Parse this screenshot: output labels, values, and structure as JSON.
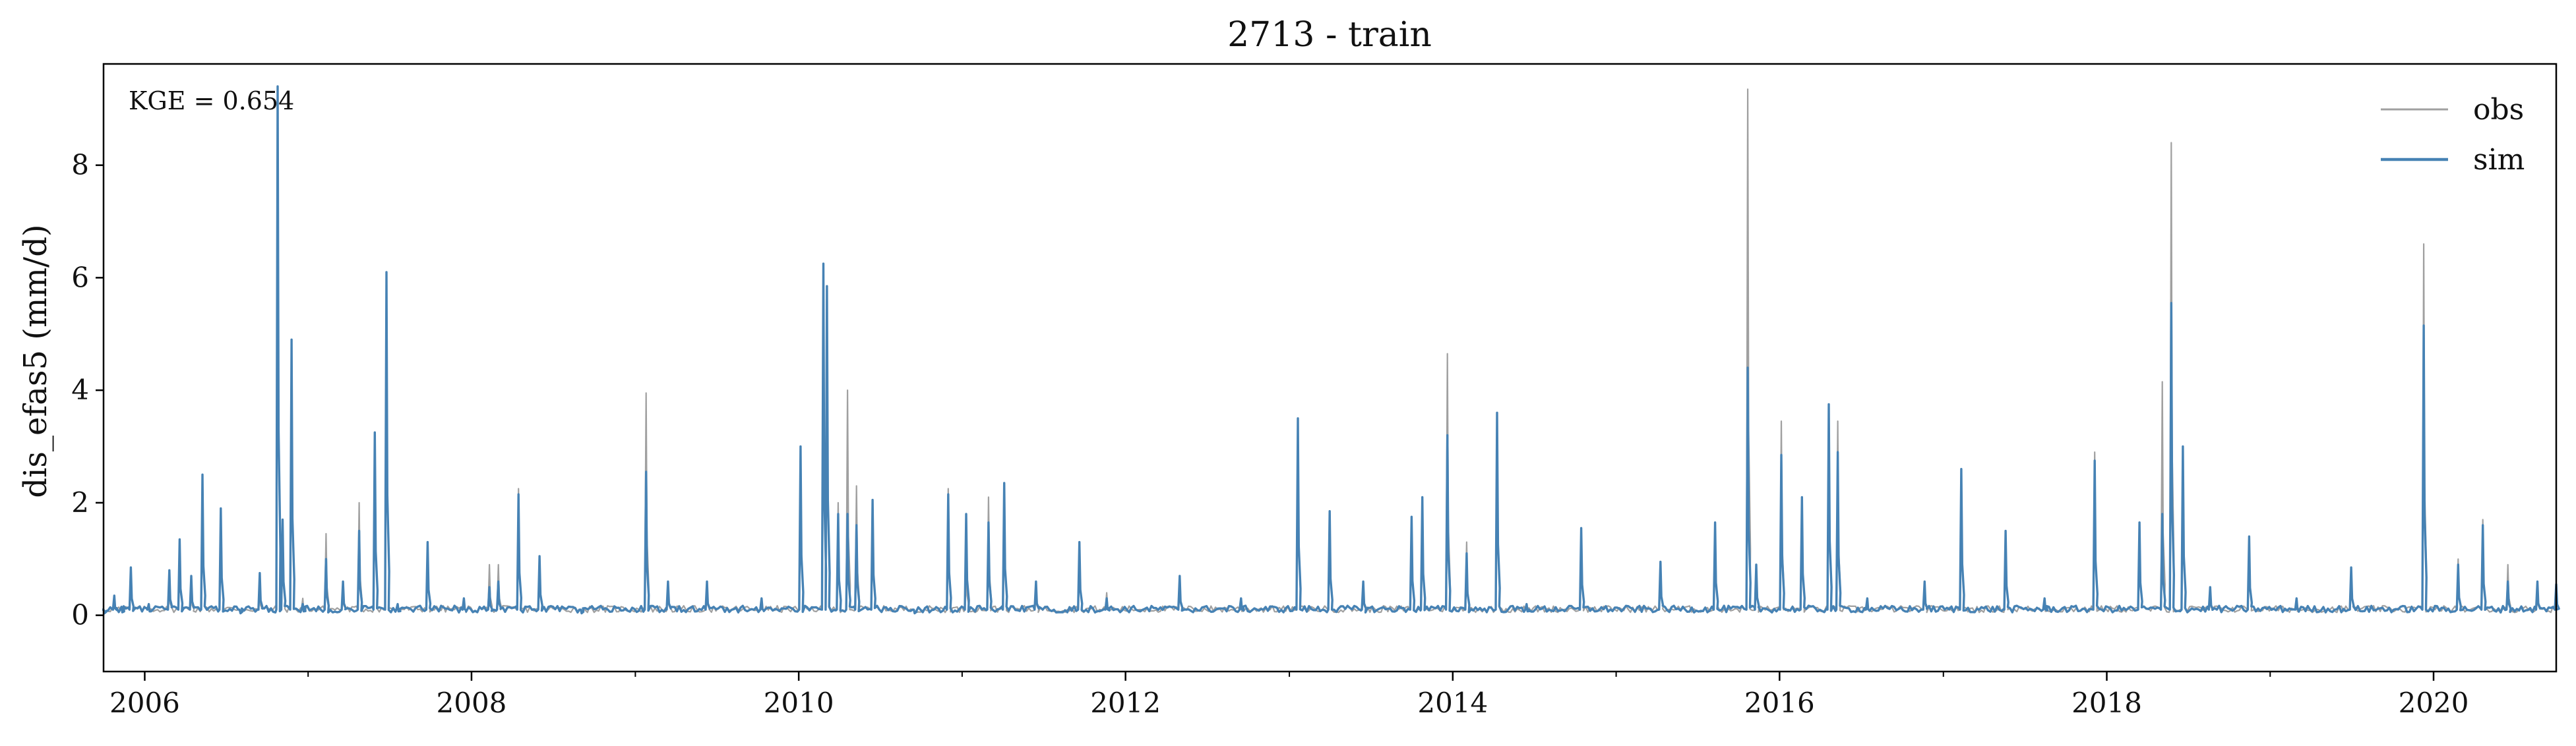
{
  "chart_data": {
    "type": "line",
    "title": "2713 - train",
    "ylabel": "dis_efas5 (mm/d)",
    "xlabel": "",
    "annotation": "KGE = 0.654",
    "xlim": [
      "2005-10-01",
      "2020-10-01"
    ],
    "ylim": [
      -1.0,
      9.8
    ],
    "x_ticks": [
      "2006",
      "2008",
      "2010",
      "2012",
      "2014",
      "2016",
      "2018",
      "2020"
    ],
    "y_ticks": [
      0,
      2,
      4,
      6,
      8
    ],
    "grid": false,
    "legend_position": "top-right",
    "series": [
      {
        "name": "obs",
        "color": "#a0a0a0",
        "points": [
          [
            "2005-10-01",
            0.1
          ],
          [
            "2005-10-25",
            0.35
          ],
          [
            "2005-11-10",
            0.15
          ],
          [
            "2005-12-01",
            0.8
          ],
          [
            "2006-01-10",
            0.2
          ],
          [
            "2006-02-25",
            0.6
          ],
          [
            "2006-03-20",
            1.2
          ],
          [
            "2006-04-15",
            0.5
          ],
          [
            "2006-05-10",
            2.4
          ],
          [
            "2006-06-20",
            1.8
          ],
          [
            "2006-08-01",
            0.1
          ],
          [
            "2006-09-15",
            0.5
          ],
          [
            "2006-10-25",
            9.3
          ],
          [
            "2006-11-05",
            1.5
          ],
          [
            "2006-11-25",
            4.8
          ],
          [
            "2006-12-20",
            0.3
          ],
          [
            "2007-02-10",
            1.45
          ],
          [
            "2007-03-20",
            0.5
          ],
          [
            "2007-04-25",
            2.0
          ],
          [
            "2007-05-30",
            3.2
          ],
          [
            "2007-06-25",
            6.0
          ],
          [
            "2007-07-20",
            0.2
          ],
          [
            "2007-09-25",
            1.3
          ],
          [
            "2007-12-15",
            0.3
          ],
          [
            "2008-02-10",
            0.9
          ],
          [
            "2008-03-01",
            0.9
          ],
          [
            "2008-04-15",
            2.25
          ],
          [
            "2008-06-01",
            1.0
          ],
          [
            "2008-09-01",
            0.1
          ],
          [
            "2009-01-25",
            3.95
          ],
          [
            "2009-03-15",
            0.5
          ],
          [
            "2009-06-10",
            0.5
          ],
          [
            "2009-10-10",
            0.3
          ],
          [
            "2010-01-05",
            3.0
          ],
          [
            "2010-02-25",
            6.2
          ],
          [
            "2010-03-05",
            5.7
          ],
          [
            "2010-03-30",
            2.0
          ],
          [
            "2010-04-20",
            4.0
          ],
          [
            "2010-05-10",
            2.3
          ],
          [
            "2010-06-15",
            2.0
          ],
          [
            "2010-09-15",
            0.1
          ],
          [
            "2010-12-01",
            2.25
          ],
          [
            "2011-01-10",
            1.0
          ],
          [
            "2011-03-01",
            2.1
          ],
          [
            "2011-04-05",
            2.3
          ],
          [
            "2011-06-15",
            0.5
          ],
          [
            "2011-09-20",
            1.25
          ],
          [
            "2011-11-20",
            0.4
          ],
          [
            "2012-05-01",
            0.6
          ],
          [
            "2012-09-15",
            0.2
          ],
          [
            "2013-01-20",
            3.45
          ],
          [
            "2013-04-01",
            1.85
          ],
          [
            "2013-06-15",
            0.5
          ],
          [
            "2013-10-01",
            1.7
          ],
          [
            "2013-10-25",
            2.0
          ],
          [
            "2013-12-20",
            4.65
          ],
          [
            "2014-02-01",
            1.3
          ],
          [
            "2014-04-10",
            3.6
          ],
          [
            "2014-06-15",
            0.2
          ],
          [
            "2014-10-15",
            1.5
          ],
          [
            "2015-04-10",
            0.9
          ],
          [
            "2015-08-10",
            1.6
          ],
          [
            "2015-10-22",
            9.35
          ],
          [
            "2015-11-10",
            0.8
          ],
          [
            "2016-01-05",
            3.45
          ],
          [
            "2016-02-20",
            2.1
          ],
          [
            "2016-04-20",
            3.7
          ],
          [
            "2016-05-10",
            3.45
          ],
          [
            "2016-07-15",
            0.3
          ],
          [
            "2016-11-20",
            0.5
          ],
          [
            "2017-02-10",
            2.5
          ],
          [
            "2017-05-20",
            1.4
          ],
          [
            "2017-08-15",
            0.2
          ],
          [
            "2017-12-05",
            2.9
          ],
          [
            "2018-03-15",
            1.6
          ],
          [
            "2018-05-05",
            4.15
          ],
          [
            "2018-05-25",
            8.4
          ],
          [
            "2018-06-20",
            2.9
          ],
          [
            "2018-08-20",
            0.4
          ],
          [
            "2018-11-15",
            1.3
          ],
          [
            "2019-03-01",
            0.2
          ],
          [
            "2019-07-01",
            0.8
          ],
          [
            "2019-12-10",
            6.6
          ],
          [
            "2020-02-25",
            1.0
          ],
          [
            "2020-04-20",
            1.7
          ],
          [
            "2020-06-15",
            0.9
          ],
          [
            "2020-08-20",
            0.5
          ],
          [
            "2020-10-01",
            0.5
          ]
        ]
      },
      {
        "name": "sim",
        "color": "#4682b4",
        "points": [
          [
            "2005-10-01",
            0.1
          ],
          [
            "2005-10-25",
            0.35
          ],
          [
            "2005-11-10",
            0.15
          ],
          [
            "2005-12-01",
            0.85
          ],
          [
            "2006-01-10",
            0.2
          ],
          [
            "2006-02-25",
            0.8
          ],
          [
            "2006-03-20",
            1.35
          ],
          [
            "2006-04-15",
            0.7
          ],
          [
            "2006-05-10",
            2.5
          ],
          [
            "2006-06-20",
            1.9
          ],
          [
            "2006-08-01",
            0.1
          ],
          [
            "2006-09-15",
            0.75
          ],
          [
            "2006-10-25",
            9.4
          ],
          [
            "2006-11-05",
            1.7
          ],
          [
            "2006-11-25",
            4.9
          ],
          [
            "2006-12-20",
            0.2
          ],
          [
            "2007-02-10",
            1.0
          ],
          [
            "2007-03-20",
            0.6
          ],
          [
            "2007-04-25",
            1.5
          ],
          [
            "2007-05-30",
            3.25
          ],
          [
            "2007-06-25",
            6.1
          ],
          [
            "2007-07-20",
            0.2
          ],
          [
            "2007-09-25",
            1.3
          ],
          [
            "2007-12-15",
            0.3
          ],
          [
            "2008-02-10",
            0.5
          ],
          [
            "2008-03-01",
            0.6
          ],
          [
            "2008-04-15",
            2.15
          ],
          [
            "2008-06-01",
            1.05
          ],
          [
            "2008-09-01",
            0.1
          ],
          [
            "2009-01-25",
            2.55
          ],
          [
            "2009-03-15",
            0.6
          ],
          [
            "2009-06-10",
            0.6
          ],
          [
            "2009-10-10",
            0.3
          ],
          [
            "2010-01-05",
            3.0
          ],
          [
            "2010-02-25",
            6.25
          ],
          [
            "2010-03-05",
            5.85
          ],
          [
            "2010-03-30",
            1.8
          ],
          [
            "2010-04-20",
            1.8
          ],
          [
            "2010-05-10",
            1.6
          ],
          [
            "2010-06-15",
            2.05
          ],
          [
            "2010-09-15",
            0.1
          ],
          [
            "2010-12-01",
            2.15
          ],
          [
            "2011-01-10",
            1.8
          ],
          [
            "2011-03-01",
            1.65
          ],
          [
            "2011-04-05",
            2.35
          ],
          [
            "2011-06-15",
            0.6
          ],
          [
            "2011-09-20",
            1.3
          ],
          [
            "2011-11-20",
            0.3
          ],
          [
            "2012-05-01",
            0.7
          ],
          [
            "2012-09-15",
            0.3
          ],
          [
            "2013-01-20",
            3.5
          ],
          [
            "2013-04-01",
            1.85
          ],
          [
            "2013-06-15",
            0.6
          ],
          [
            "2013-10-01",
            1.75
          ],
          [
            "2013-10-25",
            2.1
          ],
          [
            "2013-12-20",
            3.2
          ],
          [
            "2014-02-01",
            1.1
          ],
          [
            "2014-04-10",
            3.6
          ],
          [
            "2014-06-15",
            0.2
          ],
          [
            "2014-10-15",
            1.55
          ],
          [
            "2015-04-10",
            0.95
          ],
          [
            "2015-08-10",
            1.65
          ],
          [
            "2015-10-22",
            4.4
          ],
          [
            "2015-11-10",
            0.9
          ],
          [
            "2016-01-05",
            2.85
          ],
          [
            "2016-02-20",
            2.1
          ],
          [
            "2016-04-20",
            3.75
          ],
          [
            "2016-05-10",
            2.9
          ],
          [
            "2016-07-15",
            0.3
          ],
          [
            "2016-11-20",
            0.6
          ],
          [
            "2017-02-10",
            2.6
          ],
          [
            "2017-05-20",
            1.5
          ],
          [
            "2017-08-15",
            0.3
          ],
          [
            "2017-12-05",
            2.75
          ],
          [
            "2018-03-15",
            1.65
          ],
          [
            "2018-05-05",
            1.8
          ],
          [
            "2018-05-25",
            5.55
          ],
          [
            "2018-06-20",
            3.0
          ],
          [
            "2018-08-20",
            0.5
          ],
          [
            "2018-11-15",
            1.4
          ],
          [
            "2019-03-01",
            0.3
          ],
          [
            "2019-07-01",
            0.85
          ],
          [
            "2019-12-10",
            5.15
          ],
          [
            "2020-02-25",
            0.9
          ],
          [
            "2020-04-20",
            1.6
          ],
          [
            "2020-06-15",
            0.6
          ],
          [
            "2020-08-20",
            0.6
          ],
          [
            "2020-10-01",
            0.55
          ]
        ]
      }
    ]
  }
}
